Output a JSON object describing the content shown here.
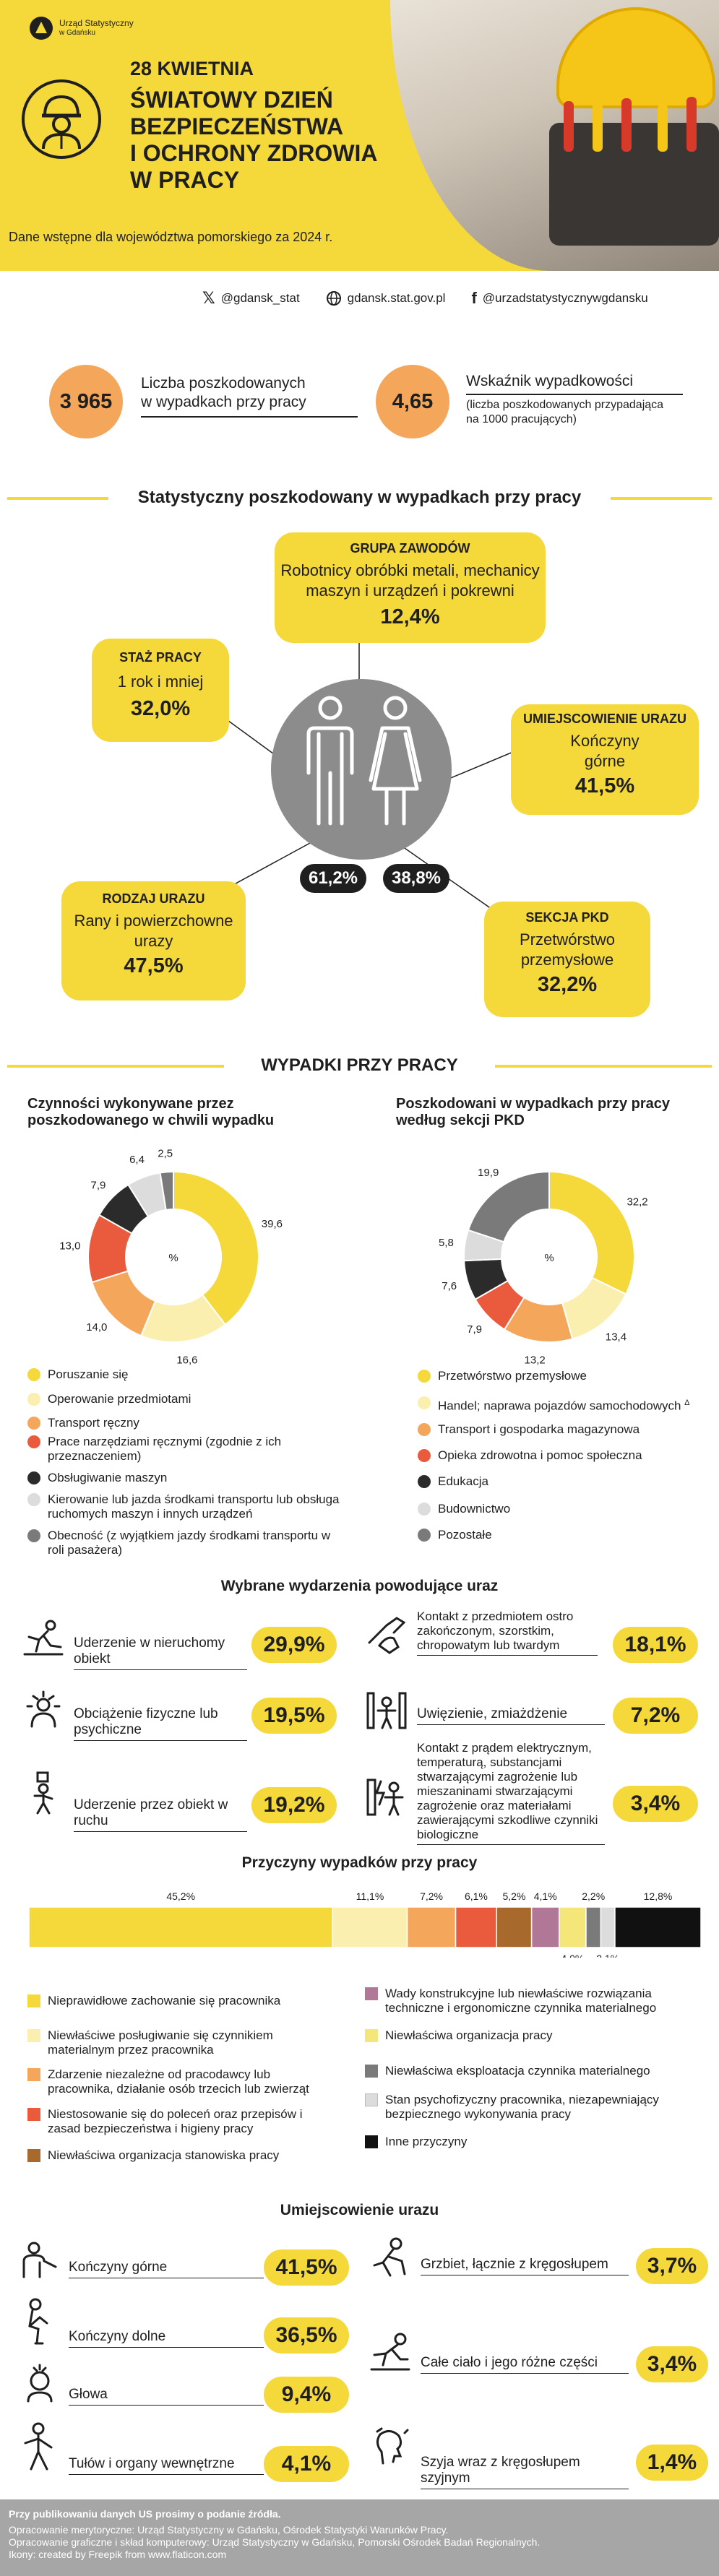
{
  "header": {
    "logo_line1": "Urząd Statystyczny",
    "logo_line2": "w Gdańsku",
    "date": "28 KWIETNIA",
    "title_lines": [
      "ŚWIATOWY DZIEŃ",
      "BEZPIECZEŃSTWA",
      "I OCHRONY ZDROWIA",
      "W PRACY"
    ],
    "subtitle": "Dane wstępne dla województwa pomorskiego za 2024 r."
  },
  "social": {
    "x": "@gdansk_stat",
    "www": "gdansk.stat.gov.pl",
    "fb": "@urzadstatystycznywgdansku"
  },
  "kpi": {
    "victims_value": "3 965",
    "victims_label_1": "Liczba poszkodowanych",
    "victims_label_2": "w wypadkach przy pracy",
    "rate_value": "4,65",
    "rate_label": "Wskaźnik wypadkowości",
    "rate_note_1": "(liczba poszkodowanych przypadająca",
    "rate_note_2": "na 1000 pracujących)"
  },
  "profile": {
    "section_title": "Statystyczny poszkodowany w wypadkach przy pracy",
    "group_title": "GRUPA ZAWODÓW",
    "group_text_1": "Robotnicy obróbki metali, mechanicy",
    "group_text_2": "maszyn i urządzeń i pokrewni",
    "group_value": "12,4%",
    "tenure_title": "STAŻ PRACY",
    "tenure_text": "1 rok i mniej",
    "tenure_value": "32,0%",
    "location_title": "UMIEJSCOWIENIE URAZU",
    "location_text_1": "Kończyny",
    "location_text_2": "górne",
    "location_value": "41,5%",
    "injury_title": "RODZAJ URAZU",
    "injury_text_1": "Rany i powierzchowne",
    "injury_text_2": "urazy",
    "injury_value": "47,5%",
    "pkd_title": "SEKCJA PKD",
    "pkd_text_1": "Przetwórstwo",
    "pkd_text_2": "przemysłowe",
    "pkd_value": "32,2%",
    "male_share": "61,2%",
    "female_share": "38,8%"
  },
  "accidents_title": "WYPADKI PRZY PRACY",
  "colors": {
    "yellow": "#f5d93a",
    "light_yellow": "#fbefb0",
    "orange": "#f4a75a",
    "red": "#ea5a3c",
    "dark": "#2b2b2b",
    "light_gray": "#dcdcdc",
    "gray": "#7a7a7a",
    "brown": "#a86a2c",
    "purple": "#b07896",
    "black": "#111111"
  },
  "chart_data": [
    {
      "type": "pie",
      "title": "Czynności wykonywane przez poszkodowanego w chwili wypadku",
      "center_label": "%",
      "categories": [
        "Poruszanie się",
        "Operowanie przedmiotami",
        "Transport ręczny",
        "Prace narzędziami ręcznymi (zgodnie z ich przeznaczeniem)",
        "Obsługiwanie maszyn",
        "Kierowanie lub jazda środkami transportu lub obsługa ruchomych maszyn i innych urządzeń",
        "Obecność (z wyjątkiem jazdy środkami transportu w roli pasażera)"
      ],
      "values": [
        39.6,
        16.6,
        14.0,
        13.0,
        7.9,
        6.4,
        2.5
      ],
      "value_labels": [
        "39,6",
        "16,6",
        "14,0",
        "13,0",
        "7,9",
        "6,4",
        "2,5"
      ],
      "colors": [
        "#f5d93a",
        "#fbefb0",
        "#f4a75a",
        "#ea5a3c",
        "#2b2b2b",
        "#dcdcdc",
        "#7a7a7a"
      ]
    },
    {
      "type": "pie",
      "title": "Poszkodowani w wypadkach przy pracy według sekcji PKD",
      "center_label": "%",
      "categories": [
        "Przetwórstwo przemysłowe",
        "Handel; naprawa pojazdów samochodowych",
        "Transport i gospodarka magazynowa",
        "Opieka zdrowotna i pomoc społeczna",
        "Edukacja",
        "Budownictwo",
        "Pozostałe"
      ],
      "legend_marks": [
        "",
        "Δ",
        "",
        "",
        "",
        "",
        ""
      ],
      "values": [
        32.2,
        13.4,
        13.2,
        7.9,
        7.6,
        5.8,
        19.9
      ],
      "value_labels": [
        "32,2",
        "13,4",
        "13,2",
        "7,9",
        "7,6",
        "5,8",
        "19,9"
      ],
      "colors": [
        "#f5d93a",
        "#fbefb0",
        "#f4a75a",
        "#ea5a3c",
        "#2b2b2b",
        "#dcdcdc",
        "#7a7a7a"
      ]
    },
    {
      "type": "bar",
      "orientation": "horizontal-stacked",
      "title": "Przyczyny wypadków przy pracy",
      "categories": [
        "Nieprawidłowe zachowanie się pracownika",
        "Niewłaściwe posługiwanie się czynnikiem materialnym przez pracownika",
        "Zdarzenie niezależne od pracodawcy lub pracownika, działanie osób trzecich lub zwierząt",
        "Niestosowanie się do poleceń oraz przepisów i zasad bezpieczeństwa i higieny pracy",
        "Niewłaściwa organizacja stanowiska pracy",
        "Wady konstrukcyjne lub niewłaściwe rozwiązania techniczne i ergonomiczne czynnika materialnego",
        "Niewłaściwa organizacja pracy",
        "Niewłaściwa eksploatacja czynnika materialnego",
        "Stan psychofizyczny pracownika, niezapewniający bezpiecznego wykonywania pracy",
        "Inne przyczyny"
      ],
      "values": [
        45.2,
        11.1,
        7.2,
        6.1,
        5.2,
        4.1,
        4.0,
        2.2,
        2.1,
        12.8
      ],
      "value_labels": [
        "45,2%",
        "11,1%",
        "7,2%",
        "6,1%",
        "5,2%",
        "4,1%",
        "4,0%",
        "2,2%",
        "2,1%",
        "12,8%"
      ],
      "colors": [
        "#f5d93a",
        "#fbefb0",
        "#f4a75a",
        "#ea5a3c",
        "#a86a2c",
        "#b07896",
        "#f5e679",
        "#7a7a7a",
        "#dcdcdc",
        "#111111"
      ]
    },
    {
      "type": "table",
      "title": "Wybrane wydarzenia powodujące uraz",
      "rows": [
        {
          "label": "Uderzenie w nieruchomy obiekt",
          "value": "29,9%",
          "icon": "trip-fall-icon"
        },
        {
          "label": "Obciążenie fizyczne lub psychiczne",
          "value": "19,5%",
          "icon": "stress-icon"
        },
        {
          "label": "Uderzenie przez obiekt w ruchu",
          "value": "19,2%",
          "icon": "falling-object-icon"
        },
        {
          "label": "Kontakt z przedmiotem ostro zakończonym, szorstkim, chropowatym lub twardym",
          "value": "18,1%",
          "icon": "hand-cut-icon"
        },
        {
          "label": "Uwięzienie, zmiażdżenie",
          "value": "7,2%",
          "icon": "crush-icon"
        },
        {
          "label": "Kontakt z prądem elektrycznym, temperaturą, substancjami stwarzającymi zagrożenie lub mieszaninami stwarzającymi zagrożenie oraz materiałami zawierającymi szkodliwe czynniki biologiczne",
          "value": "3,4%",
          "icon": "electric-shock-icon"
        }
      ]
    },
    {
      "type": "table",
      "title": "Umiejscowienie urazu",
      "rows": [
        {
          "label": "Kończyny górne",
          "value": "41,5%",
          "icon": "arm-icon"
        },
        {
          "label": "Kończyny dolne",
          "value": "36,5%",
          "icon": "leg-icon"
        },
        {
          "label": "Głowa",
          "value": "9,4%",
          "icon": "head-icon"
        },
        {
          "label": "Tułów i organy wewnętrzne",
          "value": "4,1%",
          "icon": "torso-icon"
        },
        {
          "label": "Grzbiet, łącznie z kręgosłupem",
          "value": "3,7%",
          "icon": "back-icon"
        },
        {
          "label": "Całe ciało i jego różne części",
          "value": "3,4%",
          "icon": "body-icon"
        },
        {
          "label": "Szyja wraz z kręgosłupem szyjnym",
          "value": "1,4%",
          "icon": "neck-icon"
        }
      ]
    }
  ],
  "footer": {
    "line1": "Przy publikowaniu danych US prosimy o podanie źródła.",
    "line2": "Opracowanie merytoryczne: Urząd Statystyczny w Gdańsku, Ośrodek Statystyki Warunków Pracy.",
    "line3": "Opracowanie graficzne i skład komputerowy: Urząd Statystyczny w Gdańsku, Pomorski Ośrodek Badań Regionalnych.",
    "line4": "Ikony: created by Freepik from www.flaticon.com"
  }
}
